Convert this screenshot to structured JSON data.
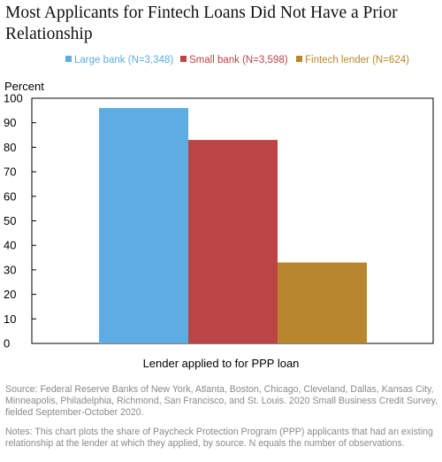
{
  "title": "Most Applicants for Fintech Loans Did Not Have a Prior Relationship",
  "source": "Source: Federal Reserve Banks of New York, Atlanta, Boston, Chicago, Cleveland, Dallas, Kansas City, Minneapolis, Philadelphia, Richmond, San Francisco, and St. Louis. 2020 Small Business Credit Survey, fielded September-October 2020.",
  "notes": "Notes: This chart plots the share of Paycheck Protection Program (PPP) applicants that had an existing relationship at the lender at which they applied, by source. N equals the number of observations.",
  "chart_data": {
    "type": "bar",
    "title": "Most Applicants for Fintech Loans Did Not Have a Prior Relationship",
    "xlabel": "Lender applied to for PPP loan",
    "ylabel": "Percent",
    "ylim": [
      0,
      100
    ],
    "yticks": [
      0,
      10,
      20,
      30,
      40,
      50,
      60,
      70,
      80,
      90,
      100
    ],
    "grid": false,
    "legend_position": "top",
    "categories": [
      "Lender applied to for PPP loan"
    ],
    "series": [
      {
        "name": "Large bank (N=3,348)",
        "values": [
          96
        ],
        "color": "#5dade2"
      },
      {
        "name": "Small bank (N=3,598)",
        "values": [
          83
        ],
        "color": "#bd4444"
      },
      {
        "name": "Fintech lender (N=624)",
        "values": [
          33
        ],
        "color": "#b8862d"
      }
    ]
  }
}
